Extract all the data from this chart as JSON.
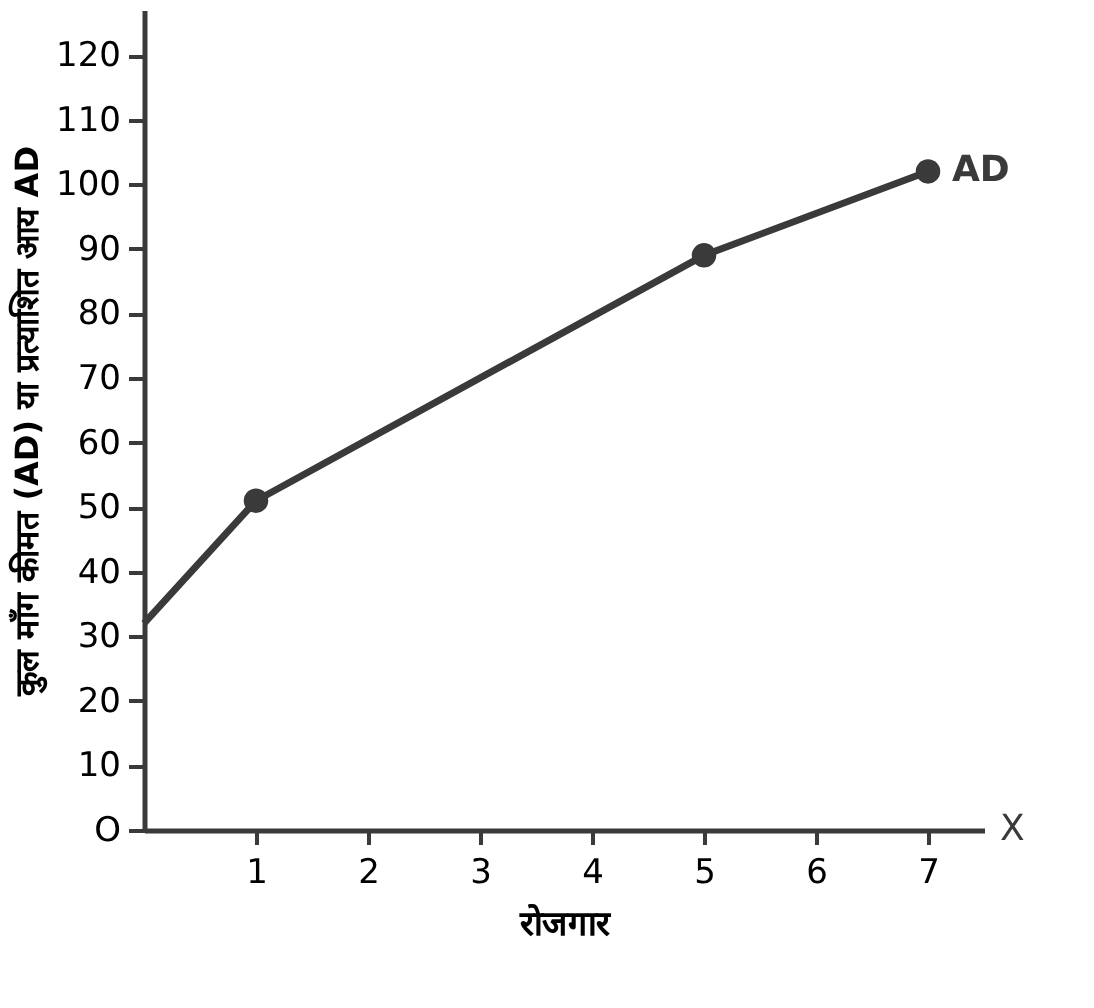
{
  "chart_data": {
    "type": "line",
    "xlabel": "रोजगार",
    "ylabel": "कुल माँग कीमत (AD) या प्रत्याशित आय AD",
    "xlim": [
      0,
      7.5
    ],
    "ylim": [
      0,
      127
    ],
    "xticks": [
      1,
      2,
      3,
      4,
      5,
      6,
      7
    ],
    "yticks": [
      {
        "value": 0,
        "label": "O"
      },
      10,
      20,
      30,
      40,
      50,
      60,
      70,
      80,
      90,
      100,
      110,
      120
    ],
    "series": [
      {
        "color": "#3a3a3a",
        "x": [
          0,
          1,
          5,
          7
        ],
        "values": [
          32,
          51,
          89,
          102
        ],
        "marker": "none",
        "line_style": "solid"
      },
      {
        "type": "scatter",
        "color": "#3a3a3a",
        "x": [
          1,
          5,
          7
        ],
        "values": [
          51,
          89,
          102
        ],
        "marker": "circle"
      }
    ],
    "annotations": [
      {
        "text": "AD",
        "x": 7,
        "y": 102
      },
      "X"
    ],
    "grid": false
  }
}
